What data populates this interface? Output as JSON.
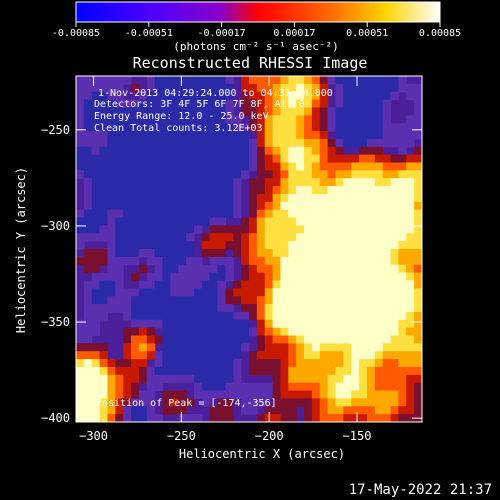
{
  "colorbar": {
    "ticks": [
      "-0.00085",
      "-0.00051",
      "-0.00017",
      "0.00017",
      "0.00051",
      "0.00085"
    ],
    "tick_values": [
      -0.00085,
      -0.00051,
      -0.00017,
      0.00017,
      0.00051,
      0.00085
    ],
    "unit_label": "(photons cm⁻² s⁻¹ asec⁻²)",
    "colors": [
      "#0000ff",
      "#6a00ff",
      "#ff0000",
      "#ffa500",
      "#ffff00",
      "#ffffff"
    ]
  },
  "title": "Reconstructed RHESSI Image",
  "annotations": {
    "time_range": "1-Nov-2013 04:29:24.000 to 04:31:04.000",
    "detectors": "Detectors: 3F 4F 5F 6F 7F 8F, Att 0",
    "energy_range": "Energy Range: 12.0 - 25.0 keV",
    "clean": "Clean     Total counts: 3.12E+03",
    "peak": "Position of Peak = [-174,-356]"
  },
  "footer_timestamp": "17-May-2022 21:37",
  "chart_data": {
    "type": "heatmap",
    "title": "Reconstructed RHESSI Image",
    "xlabel": "Heliocentric X (arcsec)",
    "ylabel": "Heliocentric Y (arcsec)",
    "xlim": [
      -310,
      -113
    ],
    "ylim": [
      -402,
      -222
    ],
    "xticks": [
      -300,
      -250,
      -200,
      -150
    ],
    "yticks": [
      -250,
      -300,
      -350,
      -400
    ],
    "peak_position": [
      -174,
      -356
    ],
    "clim": [
      -0.00085,
      0.00085
    ],
    "grid": false
  }
}
